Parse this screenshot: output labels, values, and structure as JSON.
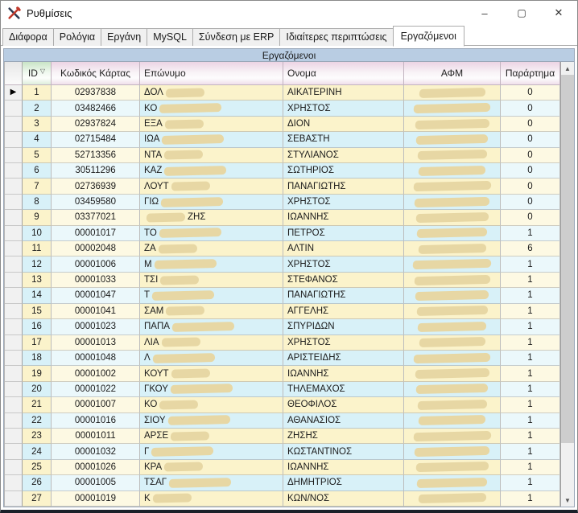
{
  "window": {
    "title": "Ρυθμίσεις",
    "controls": {
      "minimize": "–",
      "maximize": "▢",
      "close": "✕"
    }
  },
  "tabs": [
    {
      "label": "Διάφορα",
      "active": false
    },
    {
      "label": "Ρολόγια",
      "active": false
    },
    {
      "label": "Εργάνη",
      "active": false
    },
    {
      "label": "MySQL",
      "active": false
    },
    {
      "label": "Σύνδεση με ERP",
      "active": false
    },
    {
      "label": "Ιδιαίτερες περιπτώσεις",
      "active": false
    },
    {
      "label": "Εργαζόμενοι",
      "active": true
    }
  ],
  "panel": {
    "title": "Εργαζόμενοι"
  },
  "icons": {
    "app": "tools-icon",
    "sort_glyph": "▽",
    "current_row_marker": "▶",
    "scroll_up": "▲",
    "scroll_down": "▼"
  },
  "grid": {
    "columns": [
      {
        "label": "ID",
        "sorted": true,
        "align": "center",
        "style": "green"
      },
      {
        "label": "Κωδικός Κάρτας",
        "align": "center"
      },
      {
        "label": "Επώνυμο",
        "align": "left"
      },
      {
        "label": "Ονομα",
        "align": "left"
      },
      {
        "label": "ΑΦΜ",
        "align": "center"
      },
      {
        "label": "Παράρτημα",
        "align": "center"
      }
    ],
    "redacted_columns": [
      "Επώνυμο",
      "ΑΦΜ"
    ],
    "rows": [
      {
        "id": "1",
        "card": "02937838",
        "surname_pre": "ΔΟΛ",
        "surname_post": "",
        "name": "ΑΙΚΑΤΕΡΙΝΗ",
        "branch": "0",
        "current": true
      },
      {
        "id": "2",
        "card": "03482466",
        "surname_pre": "ΚΟ",
        "surname_post": "",
        "name": "ΧΡΗΣΤΟΣ",
        "branch": "0"
      },
      {
        "id": "3",
        "card": "02937824",
        "surname_pre": "ΕΞΑ",
        "surname_post": "",
        "name": "ΔΙΟΝ",
        "branch": "0"
      },
      {
        "id": "4",
        "card": "02715484",
        "surname_pre": "ΙΩΑ",
        "surname_post": "",
        "name": "ΣΕΒΑΣΤΗ",
        "branch": "0"
      },
      {
        "id": "5",
        "card": "52713356",
        "surname_pre": "ΝΤΑ",
        "surname_post": "",
        "name": "ΣΤΥΛΙΑΝΟΣ",
        "branch": "0"
      },
      {
        "id": "6",
        "card": "30511296",
        "surname_pre": "ΚΑΖ",
        "surname_post": "",
        "name": "ΣΩΤΗΡΙΟΣ",
        "branch": "0"
      },
      {
        "id": "7",
        "card": "02736939",
        "surname_pre": "ΛΟΥΤ",
        "surname_post": "",
        "name": "ΠΑΝΑΓΙΩΤΗΣ",
        "branch": "0"
      },
      {
        "id": "8",
        "card": "03459580",
        "surname_pre": "ΓΙΩ",
        "surname_post": "",
        "name": "ΧΡΗΣΤΟΣ",
        "branch": "0"
      },
      {
        "id": "9",
        "card": "03377021",
        "surname_pre": "",
        "surname_post": "ΖΗΣ",
        "name": "ΙΩΑΝΝΗΣ",
        "branch": "0"
      },
      {
        "id": "10",
        "card": "00001017",
        "surname_pre": "ΤΟ",
        "surname_post": "",
        "name": "ΠΕΤΡΟΣ",
        "branch": "1"
      },
      {
        "id": "11",
        "card": "00002048",
        "surname_pre": "ΖΑ",
        "surname_post": "",
        "name": "ΑΛΤΙΝ",
        "branch": "6"
      },
      {
        "id": "12",
        "card": "00001006",
        "surname_pre": "Μ",
        "surname_post": "",
        "name": "ΧΡΗΣΤΟΣ",
        "branch": "1"
      },
      {
        "id": "13",
        "card": "00001033",
        "surname_pre": "ΤΣΙ",
        "surname_post": "",
        "name": "ΣΤΕΦΑΝΟΣ",
        "branch": "1"
      },
      {
        "id": "14",
        "card": "00001047",
        "surname_pre": "Τ",
        "surname_post": "",
        "name": "ΠΑΝΑΓΙΩΤΗΣ",
        "branch": "1"
      },
      {
        "id": "15",
        "card": "00001041",
        "surname_pre": "ΣΑΜ",
        "surname_post": "",
        "name": "ΑΓΓΕΛΗΣ",
        "branch": "1"
      },
      {
        "id": "16",
        "card": "00001023",
        "surname_pre": "ΠΑΠΑ",
        "surname_post": "",
        "name": "ΣΠΥΡΙΔΩΝ",
        "branch": "1"
      },
      {
        "id": "17",
        "card": "00001013",
        "surname_pre": "ΛΙΑ",
        "surname_post": "",
        "name": "ΧΡΗΣΤΟΣ",
        "branch": "1"
      },
      {
        "id": "18",
        "card": "00001048",
        "surname_pre": "Λ",
        "surname_post": "",
        "name": "ΑΡΙΣΤΕΙΔΗΣ",
        "branch": "1"
      },
      {
        "id": "19",
        "card": "00001002",
        "surname_pre": "ΚΟΥΤ",
        "surname_post": "",
        "name": "ΙΩΑΝΝΗΣ",
        "branch": "1"
      },
      {
        "id": "20",
        "card": "00001022",
        "surname_pre": "ΓΚΟΥ",
        "surname_post": "",
        "name": "ΤΗΛΕΜΑΧΟΣ",
        "branch": "1"
      },
      {
        "id": "21",
        "card": "00001007",
        "surname_pre": "ΚΟ",
        "surname_post": "",
        "name": "ΘΕΟΦΙΛΟΣ",
        "branch": "1"
      },
      {
        "id": "22",
        "card": "00001016",
        "surname_pre": "ΣΙΟΥ",
        "surname_post": "",
        "name": "ΑΘΑΝΑΣΙΟΣ",
        "branch": "1"
      },
      {
        "id": "23",
        "card": "00001011",
        "surname_pre": "ΑΡΣΕ",
        "surname_post": "",
        "name": "ΖΗΣΗΣ",
        "branch": "1"
      },
      {
        "id": "24",
        "card": "00001032",
        "surname_pre": "Γ",
        "surname_post": "",
        "name": "ΚΩΣΤΑΝΤΙΝΟΣ",
        "branch": "1"
      },
      {
        "id": "25",
        "card": "00001026",
        "surname_pre": "ΚΡΑ",
        "surname_post": "",
        "name": "ΙΩΑΝΝΗΣ",
        "branch": "1"
      },
      {
        "id": "26",
        "card": "00001005",
        "surname_pre": "ΤΣΑΓ",
        "surname_post": "",
        "name": "ΔΗΜΗΤΡΙΟΣ",
        "branch": "1"
      },
      {
        "id": "27",
        "card": "00001019",
        "surname_pre": "Κ",
        "surname_post": "",
        "name": "ΚΩΝ/ΝΟΣ",
        "branch": "1"
      }
    ]
  },
  "colors": {
    "row_yellow": "#fbf3cb",
    "row_cyan": "#d8f1f8",
    "redaction": "#e7d7a4",
    "panel_header": "#b9cde3",
    "header_pink": "#ecd4e4",
    "header_green": "#c9e4c6"
  }
}
